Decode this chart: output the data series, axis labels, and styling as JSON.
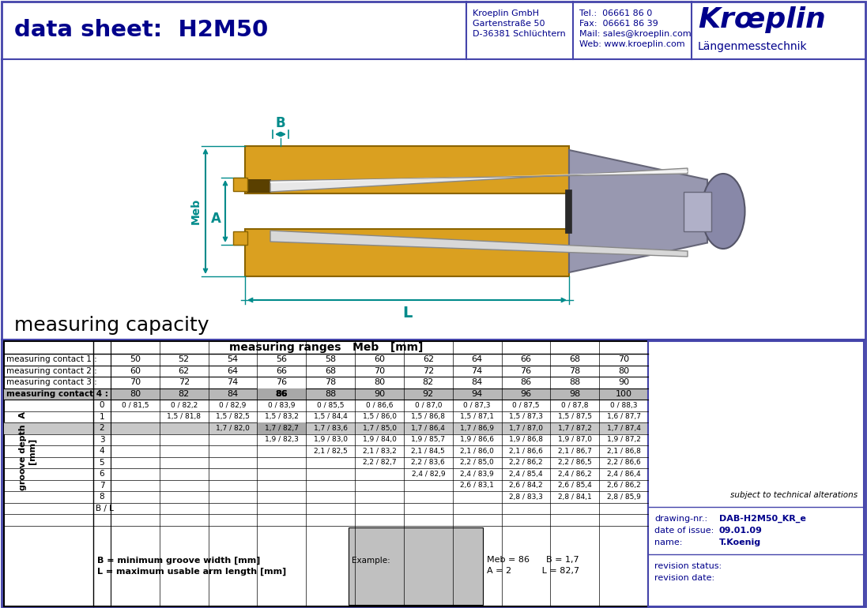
{
  "title_left": "data sheet:  H2M50",
  "company_name": "Kroeplin GmbH",
  "company_addr1": "Gartenstraße 50",
  "company_addr2": "D-36381 Schlüchtern",
  "tel": "Tel.:  06661 86 0",
  "fax": "Fax:  06661 86 39",
  "mail": "Mail: sales@kroeplin.com",
  "web": "Web: www.kroeplin.com",
  "brand_name": "Krœplin",
  "brand_sub": "Längenmesstechnik",
  "section_title": "measuring capacity",
  "table_header": "measuring ranges   Meb   [mm]",
  "contact_labels": [
    "measuring contact 1 :",
    "measuring contact 2 :",
    "measuring contact 3 :",
    "measuring contact 4 :"
  ],
  "contact_values": [
    [
      50,
      52,
      54,
      56,
      58,
      60,
      62,
      64,
      66,
      68,
      70
    ],
    [
      60,
      62,
      64,
      66,
      68,
      70,
      72,
      74,
      76,
      78,
      80
    ],
    [
      70,
      72,
      74,
      76,
      78,
      80,
      82,
      84,
      86,
      88,
      90
    ],
    [
      80,
      82,
      84,
      86,
      88,
      90,
      92,
      94,
      96,
      98,
      100
    ]
  ],
  "groove_rows": [
    0,
    1,
    2,
    3,
    4,
    5,
    6,
    7,
    8
  ],
  "table_data": [
    [
      "0 / 81,5",
      "0 / 82,2",
      "0 / 82,9",
      "0 / 83,9",
      "0 / 85,5",
      "0 / 86,6",
      "0 / 87,0",
      "0 / 87,3",
      "0 / 87,5",
      "0 / 87,8",
      "0 / 88,3"
    ],
    [
      "",
      "1,5 / 81,8",
      "1,5 / 82,5",
      "1,5 / 83,2",
      "1,5 / 84,4",
      "1,5 / 86,0",
      "1,5 / 86,8",
      "1,5 / 87,1",
      "1,5 / 87,3",
      "1,5 / 87,5",
      "1,6 / 87,7"
    ],
    [
      "",
      "",
      "1,7 / 82,0",
      "1,7 / 82,7",
      "1,7 / 83,6",
      "1,7 / 85,0",
      "1,7 / 86,4",
      "1,7 / 86,9",
      "1,7 / 87,0",
      "1,7 / 87,2",
      "1,7 / 87,4"
    ],
    [
      "",
      "",
      "",
      "1,9 / 82,3",
      "1,9 / 83,0",
      "1,9 / 84,0",
      "1,9 / 85,7",
      "1,9 / 86,6",
      "1,9 / 86,8",
      "1,9 / 87,0",
      "1,9 / 87,2"
    ],
    [
      "",
      "",
      "",
      "",
      "2,1 / 82,5",
      "2,1 / 83,2",
      "2,1 / 84,5",
      "2,1 / 86,0",
      "2,1 / 86,6",
      "2,1 / 86,7",
      "2,1 / 86,8"
    ],
    [
      "",
      "",
      "",
      "",
      "",
      "2,2 / 82,7",
      "2,2 / 83,6",
      "2,2 / 85,0",
      "2,2 / 86,2",
      "2,2 / 86,5",
      "2,2 / 86,6"
    ],
    [
      "",
      "",
      "",
      "",
      "",
      "",
      "2,4 / 82,9",
      "2,4 / 83,9",
      "2,4 / 85,4",
      "2,4 / 86,2",
      "2,4 / 86,4"
    ],
    [
      "",
      "",
      "",
      "",
      "",
      "",
      "",
      "2,6 / 83,1",
      "2,6 / 84,2",
      "2,6 / 85,4",
      "2,6 / 86,2"
    ],
    [
      "",
      "",
      "",
      "",
      "",
      "",
      "",
      "",
      "2,8 / 83,3",
      "2,8 / 84,1",
      "2,8 / 85,9"
    ]
  ],
  "BL_label": "B / L",
  "footnote1": "B = minimum groove width [mm]",
  "footnote2": "L = maximum usable arm length [mm]",
  "example_label": "Example:",
  "example_line1": "Meb = 86      B = 1,7",
  "example_line2": "A = 2           L = 82,7",
  "drawing_nr": "DAB-H2M50_KR_e",
  "date_of_issue": "09.01.09",
  "name": "T.Koenig",
  "subject_note": "subject to technical alterations",
  "border_color": "#4444aa",
  "dark_blue": "#00008B",
  "teal": "#008B8B",
  "orange_gold": "#DAA020",
  "orange_dark": "#8B6400",
  "gray_handle": "#9090a8",
  "gray_highlight": "#a8a8a8",
  "row2_bg": "#c8c8c8",
  "contact4_bg": "#b8b8b8"
}
